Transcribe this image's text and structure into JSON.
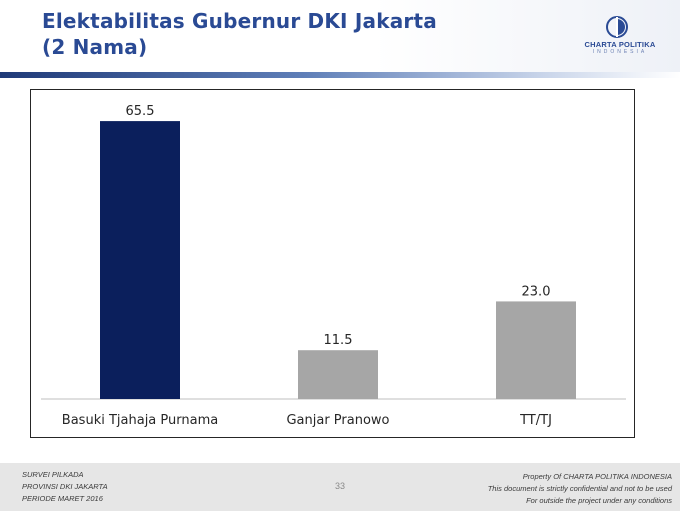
{
  "header": {
    "title_line1": "Elektabilitas Gubernur DKI Jakarta",
    "title_line2": "(2 Nama)",
    "title_color": "#2a4a94"
  },
  "logo": {
    "name": "CHARTA POLITIKA",
    "sub": "INDONESIA",
    "icon": "charta-politika-logo-mark"
  },
  "chart_data": {
    "type": "bar",
    "categories": [
      "Basuki Tjahaja Purnama",
      "Ganjar Pranowo",
      "TT/TJ"
    ],
    "values": [
      65.5,
      11.5,
      23.0
    ],
    "value_labels": [
      "65.5",
      "11.5",
      "23.0"
    ],
    "colors": [
      "#0b1f5c",
      "#a6a6a6",
      "#a6a6a6"
    ],
    "ylim": [
      0,
      70
    ],
    "grid": false,
    "legend": "none",
    "title": "",
    "xlabel": "",
    "ylabel": ""
  },
  "footer": {
    "left_lines": [
      "SURVEI PILKADA",
      "PROVINSI DKI JAKARTA",
      "PERIODE  MARET 2016"
    ],
    "page_number": "33",
    "right_lines": [
      "Property Of CHARTA POLITIKA INDONESIA",
      "This document is strictly confidential and not to be used",
      "For  outside the project under any conditions"
    ]
  }
}
